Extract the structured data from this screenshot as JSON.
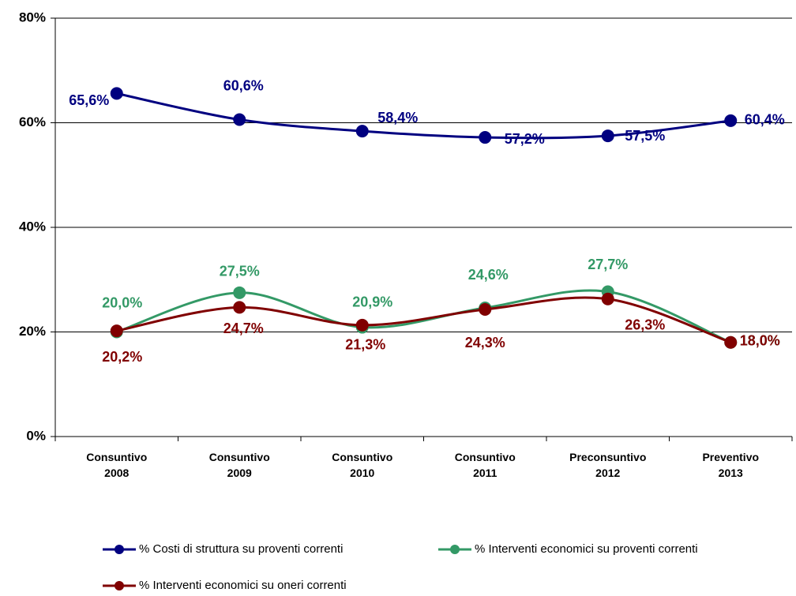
{
  "chart_data": {
    "type": "line",
    "categories": [
      "Consuntivo\n2008",
      "Consuntivo\n2009",
      "Consuntivo\n2010",
      "Consuntivo\n2011",
      "Preconsuntivo\n2012",
      "Preventivo\n2013"
    ],
    "ylim": [
      0,
      80
    ],
    "yticks": [
      {
        "value": 0,
        "label": "0%"
      },
      {
        "value": 20,
        "label": "20%"
      },
      {
        "value": 40,
        "label": "40%"
      },
      {
        "value": 60,
        "label": "60%"
      },
      {
        "value": 80,
        "label": "80%"
      }
    ],
    "grid": true,
    "legend": "bottom",
    "series": [
      {
        "name": "% Costi di struttura su proventi correnti",
        "color": "#000080",
        "values": [
          65.6,
          60.6,
          58.4,
          57.2,
          57.5,
          60.4
        ],
        "value_labels": [
          "65,6%",
          "60,6%",
          "58,4%",
          "57,2%",
          "57,5%",
          "60,4%"
        ]
      },
      {
        "name": "% Interventi economici su proventi correnti",
        "color": "#339966",
        "values": [
          20.0,
          27.5,
          20.9,
          24.6,
          27.7,
          18.0
        ],
        "value_labels": [
          "20,0%",
          "27,5%",
          "20,9%",
          "24,6%",
          "27,7%",
          "18,0%"
        ]
      },
      {
        "name": "% Interventi economici su oneri correnti",
        "color": "#800000",
        "values": [
          20.2,
          24.7,
          21.3,
          24.3,
          26.3,
          18.0
        ],
        "value_labels": [
          "20,2%",
          "24,7%",
          "21,3%",
          "24,3%",
          "26,3%",
          "18,0%"
        ]
      }
    ]
  }
}
